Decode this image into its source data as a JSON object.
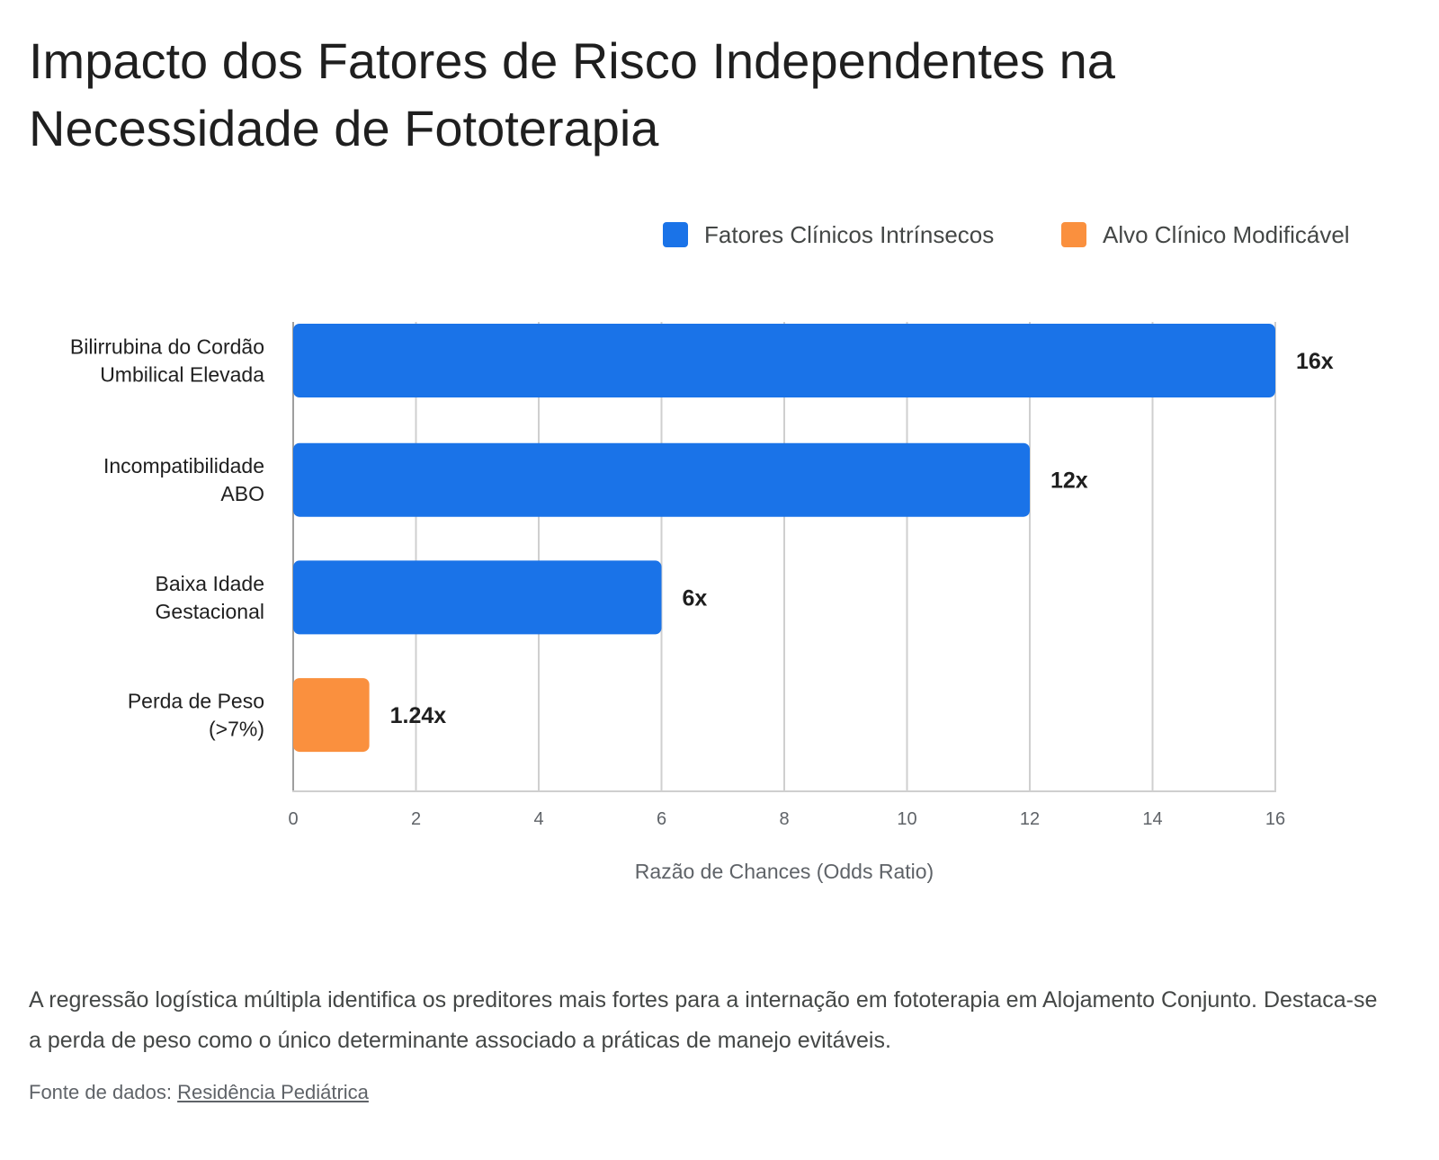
{
  "title": "Impacto dos Fatores de Risco Independentes na Necessidade de Fototerapia",
  "chart_data": {
    "type": "bar",
    "orientation": "horizontal",
    "categories": [
      [
        "Bilirrubina do Cordão",
        "Umbilical Elevada"
      ],
      [
        "Incompatibilidade",
        "ABO"
      ],
      [
        "Baixa Idade",
        "Gestacional"
      ],
      [
        "Perda de Peso",
        "(>7%)"
      ]
    ],
    "values": [
      16,
      12,
      6,
      1.24
    ],
    "value_labels": [
      "16x",
      "12x",
      "6x",
      "1.24x"
    ],
    "bar_groups": [
      0,
      0,
      0,
      1
    ],
    "legend": [
      {
        "name": "Fatores Clínicos Intrínsecos",
        "color": "#1a73e8"
      },
      {
        "name": "Alvo Clínico Modificável",
        "color": "#fa903e"
      }
    ],
    "legend_position": "top-right",
    "xlabel": "Razão de Chances (Odds Ratio)",
    "xlim": [
      0,
      16
    ],
    "xticks": [
      0,
      2,
      4,
      6,
      8,
      10,
      12,
      14,
      16
    ],
    "grid": true
  },
  "description": "A regressão logística múltipla identifica os preditores mais fortes para a internação em fototerapia em Alojamento Conjunto. Destaca-se a perda de peso como o único determinante associado a práticas de manejo evitáveis.",
  "source": {
    "prefix": "Fonte de dados: ",
    "link_text": "Residência Pediátrica"
  }
}
